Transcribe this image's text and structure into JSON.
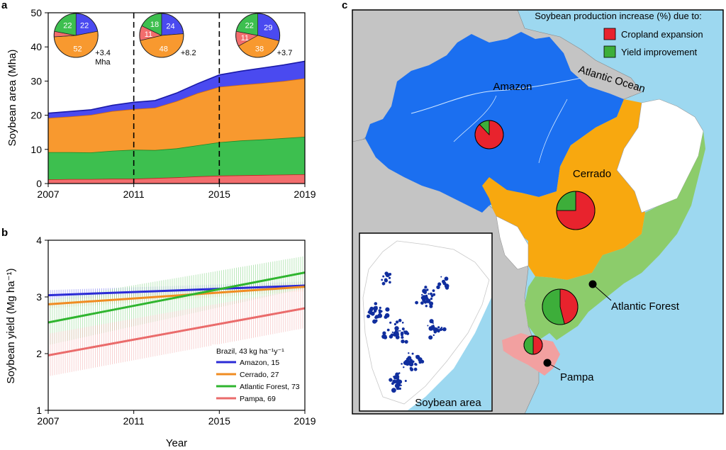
{
  "panels": {
    "a": "a",
    "b": "b",
    "c": "c"
  },
  "chart_data": [
    {
      "id": "panel-a",
      "type": "area",
      "stacked": true,
      "ylabel": "Soybean area (Mha)",
      "xlim": [
        2007,
        2019
      ],
      "ylim": [
        0,
        50
      ],
      "xticks": [
        "2007",
        "2011",
        "2015",
        "2019"
      ],
      "yticks": [
        "0",
        "10",
        "20",
        "30",
        "40",
        "50"
      ],
      "x": [
        2007,
        2008,
        2009,
        2010,
        2011,
        2012,
        2013,
        2014,
        2015,
        2016,
        2017,
        2018,
        2019
      ],
      "series": [
        {
          "key": "pampa",
          "color": "#f26d6d",
          "top": [
            1.2,
            1.3,
            1.3,
            1.4,
            1.4,
            1.6,
            1.8,
            2.1,
            2.3,
            2.4,
            2.5,
            2.6,
            2.7
          ]
        },
        {
          "key": "atlantic",
          "color": "#3dbf4f",
          "top": [
            9.2,
            9.2,
            9.1,
            9.6,
            9.9,
            9.8,
            10.3,
            11.2,
            12.1,
            12.6,
            12.9,
            13.3,
            13.7
          ]
        },
        {
          "key": "cerrado",
          "color": "#f8992f",
          "top": [
            19.2,
            19.6,
            20.1,
            21.2,
            21.8,
            22.2,
            24.1,
            26.5,
            28.3,
            28.9,
            29.4,
            30.0,
            30.8
          ]
        },
        {
          "key": "amazon",
          "color": "#4a4af0",
          "top": [
            20.6,
            21.1,
            21.6,
            22.9,
            23.8,
            24.3,
            26.5,
            29.3,
            31.8,
            32.9,
            33.8,
            34.7,
            35.8
          ]
        }
      ],
      "dividers": [
        2011,
        2015
      ],
      "pies": [
        {
          "cx": 2008.3,
          "slices": [
            {
              "value": 22,
              "label": "22",
              "color": "#4a4af0"
            },
            {
              "value": 52,
              "label": "52",
              "color": "#f8992f"
            },
            {
              "value": 4,
              "label": "",
              "color": "#f26d6d"
            },
            {
              "value": 22,
              "label": "22",
              "color": "#3dbf4f"
            }
          ],
          "note": [
            "+3.4",
            "Mha"
          ]
        },
        {
          "cx": 2012.3,
          "slices": [
            {
              "value": 24,
              "label": "24",
              "color": "#4a4af0"
            },
            {
              "value": 48,
              "label": "48",
              "color": "#f8992f"
            },
            {
              "value": 11,
              "label": "11",
              "color": "#f26d6d"
            },
            {
              "value": 18,
              "label": "18",
              "color": "#3dbf4f"
            }
          ],
          "note": [
            "+8.2"
          ]
        },
        {
          "cx": 2016.8,
          "slices": [
            {
              "value": 29,
              "label": "29",
              "color": "#4a4af0"
            },
            {
              "value": 38,
              "label": "38",
              "color": "#f8992f"
            },
            {
              "value": 11,
              "label": "11",
              "color": "#f26d6d"
            },
            {
              "value": 22,
              "label": "22",
              "color": "#3dbf4f"
            }
          ],
          "note": [
            "+3.7"
          ]
        }
      ]
    },
    {
      "id": "panel-b",
      "type": "line",
      "ylabel": "Soybean yield (Mg ha⁻¹)",
      "xlabel": "Year",
      "xlim": [
        2007,
        2019
      ],
      "ylim": [
        1,
        4
      ],
      "xticks": [
        "2007",
        "2011",
        "2015",
        "2019"
      ],
      "yticks": [
        "1",
        "2",
        "3",
        "4"
      ],
      "legend_title": "Brazil, 43 kg ha⁻¹y⁻¹",
      "legend_position": "bottom-right",
      "series": [
        {
          "name": "Amazon, 15",
          "color": "#2b2bd6",
          "band": "#7f7ff2",
          "x": [
            2007,
            2019
          ],
          "y": [
            3.03,
            3.2
          ],
          "lower": [
            2.95,
            3.13
          ],
          "upper": [
            3.12,
            3.27
          ]
        },
        {
          "name": "Cerrado, 27",
          "color": "#f08c22",
          "band": "#f7c17f",
          "x": [
            2007,
            2019
          ],
          "y": [
            2.87,
            3.18
          ],
          "lower": [
            2.8,
            3.1
          ],
          "upper": [
            2.95,
            3.26
          ]
        },
        {
          "name": "Atlantic Forest, 73",
          "color": "#2fb52f",
          "band": "#8fd88f",
          "x": [
            2007,
            2019
          ],
          "y": [
            2.55,
            3.43
          ],
          "lower": [
            2.15,
            3.15
          ],
          "upper": [
            2.95,
            3.72
          ]
        },
        {
          "name": "Pampa, 69",
          "color": "#ea6b6b",
          "band": "#f4b6b6",
          "x": [
            2007,
            2019
          ],
          "y": [
            1.97,
            2.8
          ],
          "lower": [
            1.6,
            2.45
          ],
          "upper": [
            2.35,
            3.15
          ]
        }
      ]
    }
  ],
  "map": {
    "title": "Soybean production increase (%) due to:",
    "legend": [
      {
        "label": "Cropland expansion",
        "color": "#e8232d"
      },
      {
        "label": "Yield improvement",
        "color": "#3dae3a"
      }
    ],
    "labels": {
      "amazon": "Amazon",
      "cerrado": "Cerrado",
      "atlantic_forest": "Atlantic Forest",
      "pampa": "Pampa",
      "ocean": "Atlantic Ocean",
      "inset": "Soybean area"
    },
    "colors": {
      "ocean": "#9dd8f0",
      "land": "#c4c4c4",
      "amazon": "#1b6ff0",
      "cerrado": "#f8a80f",
      "atlantic": "#8ccc6b",
      "pampa": "#f2a0a0",
      "soybean": "#102e9e"
    },
    "pies": [
      {
        "region": "amazon",
        "expansion": 88,
        "yield": 12
      },
      {
        "region": "cerrado",
        "expansion": 75,
        "yield": 25
      },
      {
        "region": "atlantic",
        "expansion": 46,
        "yield": 54
      },
      {
        "region": "pampa",
        "expansion": 50,
        "yield": 50
      }
    ]
  }
}
